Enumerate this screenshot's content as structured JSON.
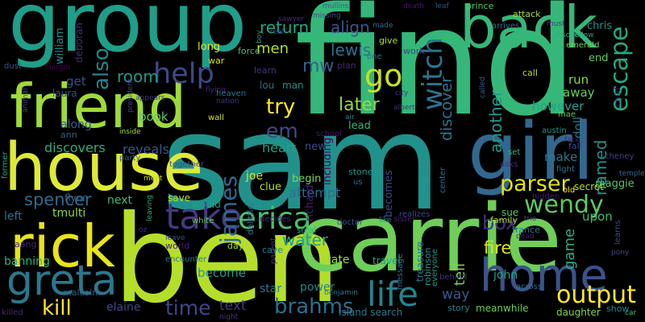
{
  "background": "#000000",
  "words": [
    {
      "text": "find",
      "color": "#35b779"
    },
    {
      "text": "sam",
      "color": "#21918c"
    },
    {
      "text": "ben",
      "color": "#b5de2b"
    },
    {
      "text": "carrie",
      "color": "#6ece58"
    },
    {
      "text": "group",
      "color": "#1f9e89"
    },
    {
      "text": "house",
      "color": "#ddea36"
    },
    {
      "text": "friend",
      "color": "#9fda3a"
    },
    {
      "text": "girl",
      "color": "#31688e"
    },
    {
      "text": "back",
      "color": "#35b779"
    },
    {
      "text": "rick",
      "color": "#e8e419"
    },
    {
      "text": "greta",
      "color": "#2a788e"
    },
    {
      "text": "home",
      "color": "#3b528b"
    },
    {
      "text": "take",
      "color": "#443983"
    },
    {
      "text": "erica",
      "color": "#4ac16d"
    },
    {
      "text": "output",
      "color": "#fde725"
    },
    {
      "text": "life",
      "color": "#26828e"
    },
    {
      "text": "help",
      "color": "#3e4989"
    },
    {
      "text": "go",
      "color": "#c8e020"
    },
    {
      "text": "witch",
      "color": "#2c728e"
    },
    {
      "text": "escape",
      "color": "#23a983"
    },
    {
      "text": "wendy",
      "color": "#5ec962"
    },
    {
      "text": "parser",
      "color": "#e3e418"
    },
    {
      "text": "brahms",
      "color": "#2e6e8e"
    },
    {
      "text": "james",
      "color": "#31688e"
    },
    {
      "text": "kill",
      "color": "#fde725"
    },
    {
      "text": "time",
      "color": "#3f4788"
    },
    {
      "text": "also",
      "color": "#25858e"
    },
    {
      "text": "try",
      "color": "#fde725"
    },
    {
      "text": "em",
      "color": "#3e4a89"
    },
    {
      "text": "lewis",
      "color": "#2d708e"
    },
    {
      "text": "box",
      "color": "#46307e"
    },
    {
      "text": "later",
      "color": "#95d840"
    },
    {
      "text": "fire",
      "color": "#e1e41d"
    },
    {
      "text": "water",
      "color": "#1f9f88"
    },
    {
      "text": "spencer",
      "color": "#306a8e"
    },
    {
      "text": "return",
      "color": "#21a585"
    },
    {
      "text": "align",
      "color": "#39558c"
    },
    {
      "text": "discover",
      "color": "#2a768e"
    },
    {
      "text": "another",
      "color": "#1e9b8a"
    },
    {
      "text": "named",
      "color": "#20928c"
    },
    {
      "text": "mw",
      "color": "#365c8d"
    },
    {
      "text": "room",
      "color": "#1f9a8a"
    },
    {
      "text": "men",
      "color": "#b8de29"
    },
    {
      "text": "game",
      "color": "#27ad81"
    },
    {
      "text": "tell",
      "color": "#7ad151"
    },
    {
      "text": "way",
      "color": "#38598c"
    },
    {
      "text": "text",
      "color": "#46337f"
    },
    {
      "text": "attempt",
      "color": "#2f6c8e"
    },
    {
      "text": "heart",
      "color": "#20a386"
    },
    {
      "text": "reveals",
      "color": "#3a548c"
    },
    {
      "text": "discovers",
      "color": "#29af7f"
    },
    {
      "text": "doll",
      "color": "#2d718e"
    },
    {
      "text": "make",
      "color": "#2a788e"
    },
    {
      "text": "run",
      "color": "#8fd744"
    },
    {
      "text": "away",
      "color": "#6ccd5a"
    },
    {
      "text": "however",
      "color": "#1fa287"
    },
    {
      "text": "upon",
      "color": "#3dbc74"
    },
    {
      "text": "book",
      "color": "#5ec962"
    },
    {
      "text": "along",
      "color": "#365d8d"
    },
    {
      "text": "get",
      "color": "#3c4f8a"
    },
    {
      "text": "elaine",
      "color": "#3e4989"
    },
    {
      "text": "become",
      "color": "#1e9c89"
    },
    {
      "text": "power",
      "color": "#25848e"
    },
    {
      "text": "banning",
      "color": "#29af7f"
    },
    {
      "text": "john",
      "color": "#1fa188"
    },
    {
      "text": "state",
      "color": "#9bd93c"
    },
    {
      "text": "star",
      "color": "#2b758e"
    },
    {
      "text": "left",
      "color": "#2d708e"
    },
    {
      "text": "next",
      "color": "#3bbb75"
    },
    {
      "text": "tmulti",
      "color": "#90d743"
    },
    {
      "text": "william",
      "color": "#21918c"
    },
    {
      "text": "deborah",
      "color": "#472d7b"
    },
    {
      "text": "richard",
      "color": "#481f70"
    },
    {
      "text": "becomes",
      "color": "#404588"
    },
    {
      "text": "joe",
      "color": "#d8e219"
    },
    {
      "text": "begin",
      "color": "#81d34d"
    },
    {
      "text": "lead",
      "color": "#37b878"
    },
    {
      "text": "new",
      "color": "#3b518b"
    },
    {
      "text": "including",
      "color": "#440154"
    },
    {
      "text": "lou",
      "color": "#2e6f8e"
    },
    {
      "text": "man",
      "color": "#228d8d"
    },
    {
      "text": "long",
      "color": "#e7e419"
    },
    {
      "text": "end",
      "color": "#62cb5f"
    },
    {
      "text": "chris",
      "color": "#21918c"
    },
    {
      "text": "maggie",
      "color": "#52c569"
    },
    {
      "text": "sue",
      "color": "#5ac864"
    },
    {
      "text": "laura",
      "color": "#3b528b"
    },
    {
      "text": "ann",
      "color": "#35608d"
    },
    {
      "text": "save",
      "color": "#bddf26"
    },
    {
      "text": "would",
      "color": "#1fa088"
    },
    {
      "text": "flynn",
      "color": "#33638d"
    },
    {
      "text": "aang",
      "color": "#482475"
    },
    {
      "text": "malcolm",
      "color": "#355f8d"
    },
    {
      "text": "clue",
      "color": "#b5de2b"
    },
    {
      "text": "treasure",
      "color": "#2c728e"
    },
    {
      "text": "robinson",
      "color": "#1f968b"
    },
    {
      "text": "travel",
      "color": "#1fa188"
    },
    {
      "text": "island search",
      "color": "#2a788e"
    },
    {
      "text": "story",
      "color": "#26828e"
    },
    {
      "text": "meanwhile",
      "color": "#6ece58"
    },
    {
      "text": "daughter",
      "color": "#7fd34e"
    },
    {
      "text": "secret",
      "color": "#b5de2b"
    },
    {
      "text": "family",
      "color": "#a2da37"
    },
    {
      "text": "france",
      "color": "#2a768e"
    },
    {
      "text": "stone",
      "color": "#21918c"
    },
    {
      "text": "plan",
      "color": "#482576"
    },
    {
      "text": "school",
      "color": "#48186a"
    },
    {
      "text": "give",
      "color": "#addc30"
    },
    {
      "text": "work",
      "color": "#414487"
    },
    {
      "text": "one",
      "color": "#2e6e8e"
    },
    {
      "text": "force",
      "color": "#44bf70"
    },
    {
      "text": "war",
      "color": "#d2e21b"
    },
    {
      "text": "learn",
      "color": "#46337f"
    },
    {
      "text": "party",
      "color": "#365d8d"
    },
    {
      "text": "together",
      "color": "#3e4a89"
    },
    {
      "text": "encounter",
      "color": "#2a788e"
    },
    {
      "text": "world",
      "color": "#481a6c"
    },
    {
      "text": "day",
      "color": "#a0da39"
    },
    {
      "text": "cave",
      "color": "#26828e"
    },
    {
      "text": "parent",
      "color": "#443983"
    },
    {
      "text": "benjamin",
      "color": "#2a788e"
    },
    {
      "text": "doctor",
      "color": "#3b528b"
    },
    {
      "text": "steal",
      "color": "#29af7f"
    },
    {
      "text": "decides",
      "color": "#482878"
    },
    {
      "text": "realizes",
      "color": "#3f4788"
    },
    {
      "text": "message",
      "color": "#2d718e"
    },
    {
      "text": "everyone",
      "color": "#1f988b"
    },
    {
      "text": "behind",
      "color": "#46307e"
    },
    {
      "text": "across",
      "color": "#2c728e"
    },
    {
      "text": "show",
      "color": "#25848e"
    },
    {
      "text": "dolittle",
      "color": "#2d708e"
    },
    {
      "text": "prince",
      "color": "#52c569"
    },
    {
      "text": "attack",
      "color": "#a0da39"
    },
    {
      "text": "call",
      "color": "#b5de2b"
    },
    {
      "text": "emerald",
      "color": "#75d054"
    },
    {
      "text": "arrives",
      "color": "#2e6e8e"
    },
    {
      "text": "fall",
      "color": "#3e4a89"
    },
    {
      "text": "austin",
      "color": "#1f968b"
    },
    {
      "text": "mae",
      "color": "#5ec962"
    },
    {
      "text": "child",
      "color": "#470d60"
    },
    {
      "text": "cheney",
      "color": "#414487"
    },
    {
      "text": "hidden",
      "color": "#481b6d"
    },
    {
      "text": "fight",
      "color": "#2c728e"
    },
    {
      "text": "old",
      "color": "#fde725"
    },
    {
      "text": "set",
      "color": "#35b779"
    },
    {
      "text": "asks",
      "color": "#46307e"
    },
    {
      "text": "learns",
      "color": "#3f4788"
    },
    {
      "text": "pony",
      "color": "#3e4989"
    },
    {
      "text": "trio",
      "color": "#433e85"
    },
    {
      "text": "dead",
      "color": "#482173"
    },
    {
      "text": "temple",
      "color": "#31688e"
    },
    {
      "text": "center",
      "color": "#2f6c8e"
    },
    {
      "text": "using",
      "color": "#1f9e89"
    },
    {
      "text": "us",
      "color": "#31688e"
    },
    {
      "text": "sister",
      "color": "#482071"
    },
    {
      "text": "night",
      "color": "#463480"
    },
    {
      "text": "killed",
      "color": "#482979"
    },
    {
      "text": "former",
      "color": "#20a486"
    },
    {
      "text": "death",
      "color": "#481467"
    },
    {
      "text": "mullins",
      "color": "#33638d"
    },
    {
      "text": "missing",
      "color": "#3d4e8a"
    },
    {
      "text": "made",
      "color": "#2e6e8e"
    },
    {
      "text": "leaf",
      "color": "#38598c"
    },
    {
      "text": "must",
      "color": "#453882"
    },
    {
      "text": "follow",
      "color": "#22a884"
    },
    {
      "text": "rescue",
      "color": "#29af7f"
    },
    {
      "text": "dust",
      "color": "#39558c"
    },
    {
      "text": "margin",
      "color": "#440154"
    },
    {
      "text": "appears",
      "color": "#453781"
    },
    {
      "text": "flying",
      "color": "#482475"
    },
    {
      "text": "nation",
      "color": "#46327e"
    },
    {
      "text": "president",
      "color": "#414487"
    },
    {
      "text": "leaving",
      "color": "#29af7f"
    },
    {
      "text": "animal",
      "color": "#3f4889"
    },
    {
      "text": "meet",
      "color": "#c8e020"
    },
    {
      "text": "white",
      "color": "#65cb5e"
    },
    {
      "text": "leave",
      "color": "#3b528b"
    },
    {
      "text": "oz",
      "color": "#472d7b"
    },
    {
      "text": "inside",
      "color": "#9fda3a"
    },
    {
      "text": "wall",
      "color": "#d5e21a"
    },
    {
      "text": "heaven",
      "color": "#2a778e"
    },
    {
      "text": "air",
      "color": "#24868e"
    },
    {
      "text": "albert",
      "color": "#46307e"
    },
    {
      "text": "city",
      "color": "#463480"
    },
    {
      "text": "like",
      "color": "#1f9e89"
    },
    {
      "text": "called",
      "color": "#365c8d"
    },
    {
      "text": "face",
      "color": "#482374"
    },
    {
      "text": "car",
      "color": "#4ac16d"
    },
    {
      "text": "boy",
      "color": "#1f9a8a"
    },
    {
      "text": "real",
      "color": "#3e4989"
    },
    {
      "text": "sawyer",
      "color": "#472c7a"
    }
  ]
}
